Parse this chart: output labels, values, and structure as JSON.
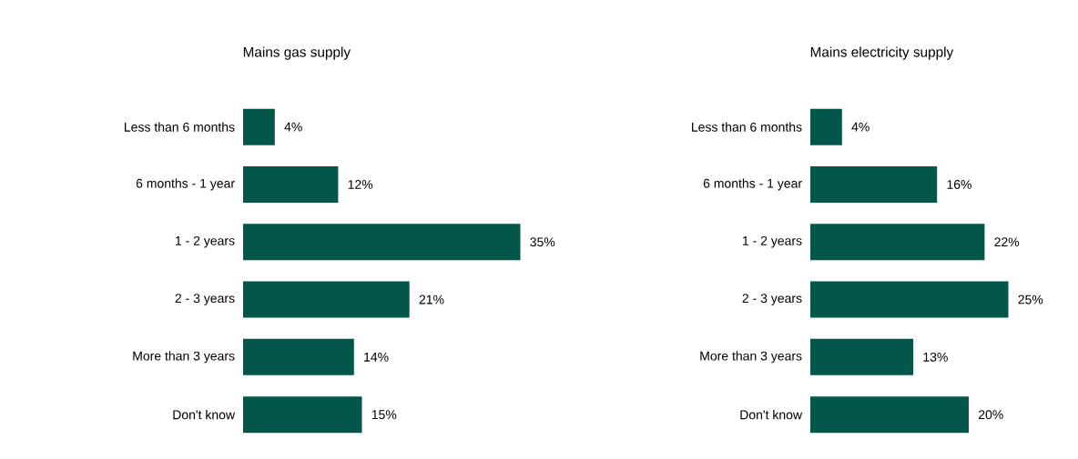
{
  "chart_data": [
    {
      "type": "bar",
      "orientation": "horizontal",
      "title": "Mains gas supply",
      "categories": [
        "Less than 6 months",
        "6 months - 1 year",
        "1 - 2 years",
        "2 - 3 years",
        "More than 3 years",
        "Don't know"
      ],
      "values": [
        4,
        12,
        35,
        21,
        14,
        15
      ],
      "value_labels": [
        "4%",
        "12%",
        "35%",
        "21%",
        "14%",
        "15%"
      ],
      "color": "#02574a"
    },
    {
      "type": "bar",
      "orientation": "horizontal",
      "title": "Mains electricity supply",
      "categories": [
        "Less than 6 months",
        "6 months - 1 year",
        "1 - 2 years",
        "2 - 3 years",
        "More than 3 years",
        "Don't know"
      ],
      "values": [
        4,
        16,
        22,
        25,
        13,
        20
      ],
      "value_labels": [
        "4%",
        "16%",
        "22%",
        "25%",
        "13%",
        "20%"
      ],
      "color": "#02574a"
    }
  ]
}
